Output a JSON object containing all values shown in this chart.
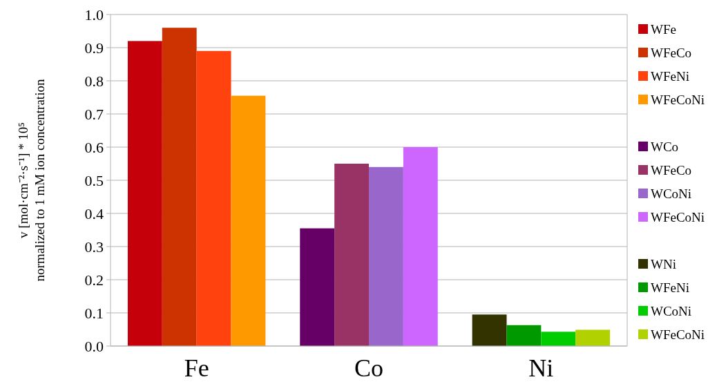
{
  "chart_data": {
    "type": "bar",
    "ylabel": "v [mol·cm⁻²·s⁻¹] * 10⁵\nnormalized to 1 mM ion concentration",
    "categories": [
      "Fe",
      "Co",
      "Ni"
    ],
    "ylim": [
      0,
      1
    ],
    "yticks": [
      {
        "value": 0,
        "label": "0.0"
      },
      0.1,
      0.2,
      0.3,
      0.4,
      0.5,
      0.6,
      0.7,
      0.8,
      0.9,
      {
        "value": 1,
        "label": "1.0"
      }
    ],
    "grid": "y",
    "legend": "right",
    "series": [
      {
        "name": "WFe",
        "color": "#c5000b",
        "values": [
          0.92,
          null,
          null
        ]
      },
      {
        "name": "WFeCo",
        "color": "#cc3300",
        "values": [
          0.96,
          null,
          null
        ]
      },
      {
        "name": "WFeNi",
        "color": "#ff420e",
        "values": [
          0.89,
          null,
          null
        ]
      },
      {
        "name": "WFeCoNi",
        "color": "#ff9900",
        "values": [
          0.755,
          null,
          null
        ]
      },
      {
        "name": "WCo",
        "color": "#660066",
        "values": [
          null,
          0.355,
          null
        ]
      },
      {
        "name": "WFeCo",
        "color": "#993366",
        "values": [
          null,
          0.55,
          null
        ]
      },
      {
        "name": "WCoNi",
        "color": "#9966cc",
        "values": [
          null,
          0.54,
          null
        ]
      },
      {
        "name": "WFeCoNi",
        "color": "#cc66ff",
        "values": [
          null,
          0.6,
          null
        ]
      },
      {
        "name": "WNi",
        "color": "#333300",
        "values": [
          null,
          null,
          0.095
        ]
      },
      {
        "name": "WFeNi",
        "color": "#009900",
        "values": [
          null,
          null,
          0.063
        ]
      },
      {
        "name": "WCoNi",
        "color": "#00cc00",
        "values": [
          null,
          null,
          0.043
        ]
      },
      {
        "name": "WFeCoNi",
        "color": "#b2d100",
        "values": [
          null,
          null,
          0.049
        ]
      }
    ]
  }
}
